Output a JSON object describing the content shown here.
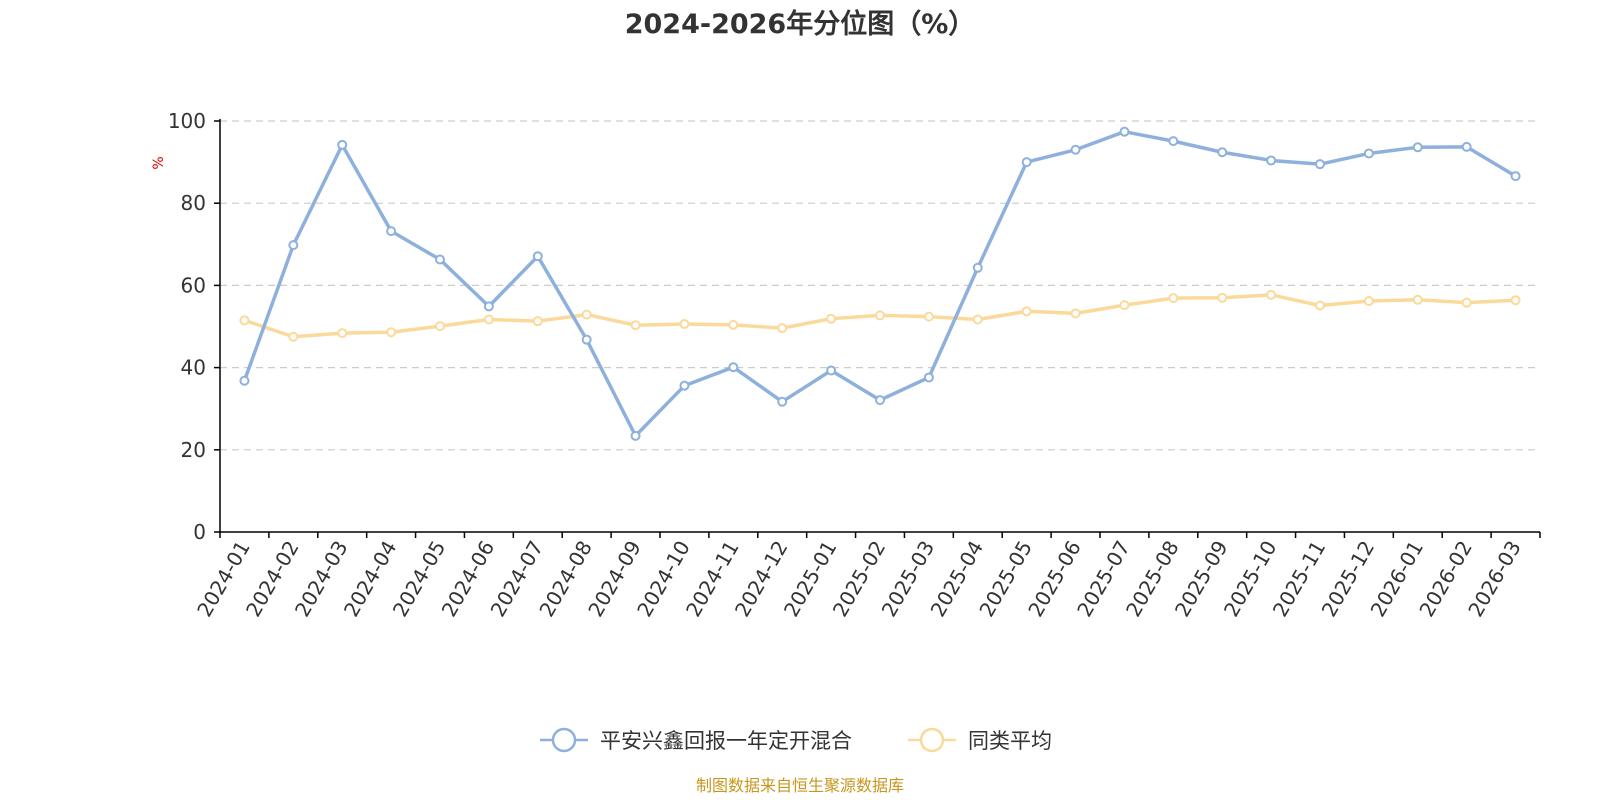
{
  "chart_data": {
    "type": "line",
    "title": "2024-2026年分位图（%）",
    "ylabel": "%",
    "xlabel": "",
    "ylim": [
      0,
      100
    ],
    "yticks": [
      0,
      20,
      40,
      60,
      80,
      100
    ],
    "grid": true,
    "legend_position": "bottom-center",
    "categories": [
      "2024-01",
      "2024-02",
      "2024-03",
      "2024-04",
      "2024-05",
      "2024-06",
      "2024-07",
      "2024-08",
      "2024-09",
      "2024-10",
      "2024-11",
      "2024-12",
      "2025-01",
      "2025-02",
      "2025-03",
      "2025-04",
      "2025-05",
      "2025-06",
      "2025-07",
      "2025-08",
      "2025-09",
      "2025-10",
      "2025-11",
      "2025-12",
      "2026-01",
      "2026-02",
      "2026-03"
    ],
    "series": [
      {
        "name": "平安兴鑫回报一年定开混合",
        "color": "#8eb0dc",
        "values": [
          36.8,
          69.8,
          94.2,
          73.2,
          66.3,
          54.9,
          67.1,
          46.8,
          23.4,
          35.6,
          40.1,
          31.7,
          39.3,
          32.1,
          37.6,
          64.3,
          90.0,
          93.0,
          97.4,
          95.1,
          92.4,
          90.4,
          89.5,
          92.1,
          93.6,
          93.7,
          86.6
        ]
      },
      {
        "name": "同类平均",
        "color": "#fbd99a",
        "values": [
          51.5,
          47.5,
          48.4,
          48.6,
          50.1,
          51.7,
          51.3,
          52.9,
          50.3,
          50.6,
          50.4,
          49.6,
          51.9,
          52.7,
          52.4,
          51.7,
          53.7,
          53.2,
          55.2,
          56.9,
          57.0,
          57.7,
          55.1,
          56.2,
          56.5,
          55.8,
          56.4
        ]
      }
    ]
  },
  "footer": {
    "source": "制图数据来自恒生聚源数据库"
  }
}
